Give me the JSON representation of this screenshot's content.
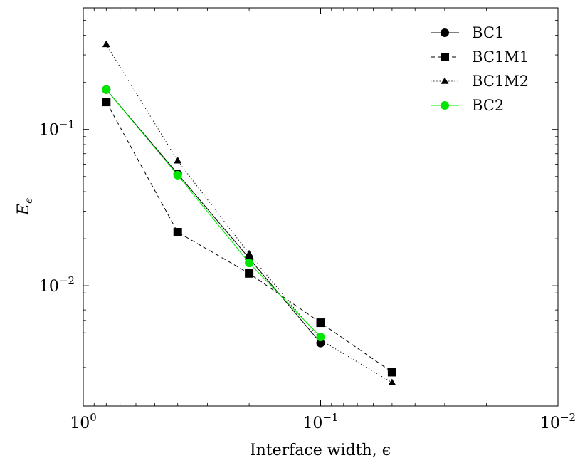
{
  "chart_data": {
    "type": "line",
    "xlabel": "Interface width, ϵ",
    "ylabel": "Eϵ",
    "ylabel_main": "E",
    "ylabel_sub": "ϵ",
    "x_scale": "log",
    "y_scale": "log",
    "x_reversed": true,
    "xlim": [
      1,
      0.01
    ],
    "ylim": [
      0.0017,
      0.6
    ],
    "x_ticks": [
      {
        "value": 1,
        "base": "10",
        "exp": "0"
      },
      {
        "value": 0.1,
        "base": "10",
        "exp": "−1"
      },
      {
        "value": 0.01,
        "base": "10",
        "exp": "−2"
      }
    ],
    "y_ticks": [
      {
        "value": 0.1,
        "base": "10",
        "exp": "−1"
      },
      {
        "value": 0.01,
        "base": "10",
        "exp": "−2"
      }
    ],
    "grid": false,
    "legend_position": "top-right",
    "series": [
      {
        "name": "BC1",
        "color": "#000000",
        "marker": "circle",
        "line": "solid",
        "x": [
          0.8,
          0.4,
          0.2,
          0.1
        ],
        "y": [
          0.18,
          0.052,
          0.015,
          0.0043
        ]
      },
      {
        "name": "BC1M1",
        "color": "#000000",
        "marker": "square",
        "line": "dashed",
        "x": [
          0.8,
          0.4,
          0.2,
          0.1,
          0.05
        ],
        "y": [
          0.15,
          0.022,
          0.012,
          0.0058,
          0.0028
        ]
      },
      {
        "name": "BC1M2",
        "color": "#000000",
        "marker": "triangle",
        "line": "dotted",
        "x": [
          0.8,
          0.4,
          0.2,
          0.1,
          0.05
        ],
        "y": [
          0.35,
          0.063,
          0.016,
          0.0045,
          0.0024
        ]
      },
      {
        "name": "BC2",
        "color": "#00e600",
        "marker": "circle",
        "line": "solid",
        "x": [
          0.8,
          0.4,
          0.2,
          0.1
        ],
        "y": [
          0.18,
          0.051,
          0.014,
          0.0047
        ]
      }
    ]
  }
}
